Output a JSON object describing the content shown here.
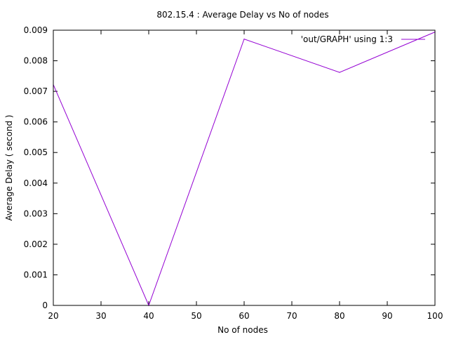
{
  "chart_data": {
    "type": "line",
    "title": "802.15.4 : Average Delay vs No of nodes",
    "xlabel": "No of nodes",
    "ylabel": "Average Delay ( second )",
    "xlim": [
      20,
      100
    ],
    "ylim": [
      0,
      0.009
    ],
    "x_ticks": [
      "20",
      "30",
      "40",
      "50",
      "60",
      "70",
      "80",
      "90",
      "100"
    ],
    "y_ticks": [
      "0",
      "0.001",
      "0.002",
      "0.003",
      "0.004",
      "0.005",
      "0.006",
      "0.007",
      "0.008",
      "0.009"
    ],
    "grid": false,
    "legend_position": "top-right",
    "series": [
      {
        "name": "'out/GRAPH' using 1:3",
        "color": "#9400d3",
        "x": [
          20,
          40,
          60,
          80,
          100
        ],
        "y": [
          0.00722,
          0.0,
          0.00871,
          0.00762,
          0.00894
        ]
      }
    ]
  }
}
